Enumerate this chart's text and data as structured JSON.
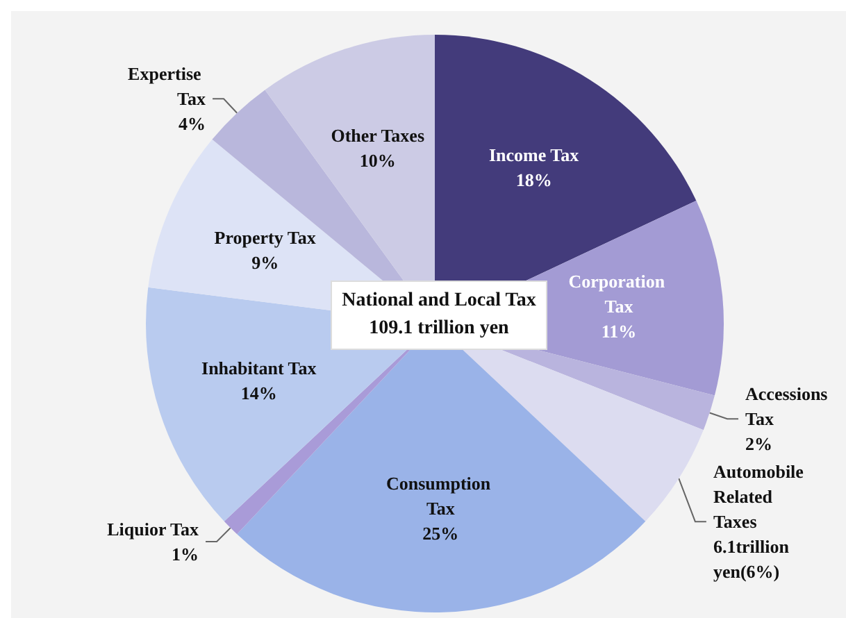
{
  "chart_data": {
    "type": "pie",
    "categories": [
      "Income Tax",
      "Corporation Tax",
      "Accessions Tax",
      "Automobile Related Taxes",
      "Consumption Tax",
      "Liquior Tax",
      "Inhabitant Tax",
      "Property Tax",
      "Expertise Tax",
      "Other Taxes"
    ],
    "values": [
      18,
      11,
      2,
      6,
      25,
      1,
      14,
      9,
      4,
      10
    ],
    "value_labels": [
      "18%",
      "11%",
      "2%",
      "6.1trillion yen(6%)",
      "25%",
      "1%",
      "14%",
      "9%",
      "4%",
      "10%"
    ],
    "colors": [
      "#433b7b",
      "#a39bd4",
      "#b9b4de",
      "#dcdcf0",
      "#9ab3e8",
      "#a99bd8",
      "#b9cbef",
      "#dde3f6",
      "#b9b7dc",
      "#cccbe5"
    ],
    "annotations": [
      "National and Local Tax 109.1 trillion yen"
    ],
    "legend": false
  }
}
